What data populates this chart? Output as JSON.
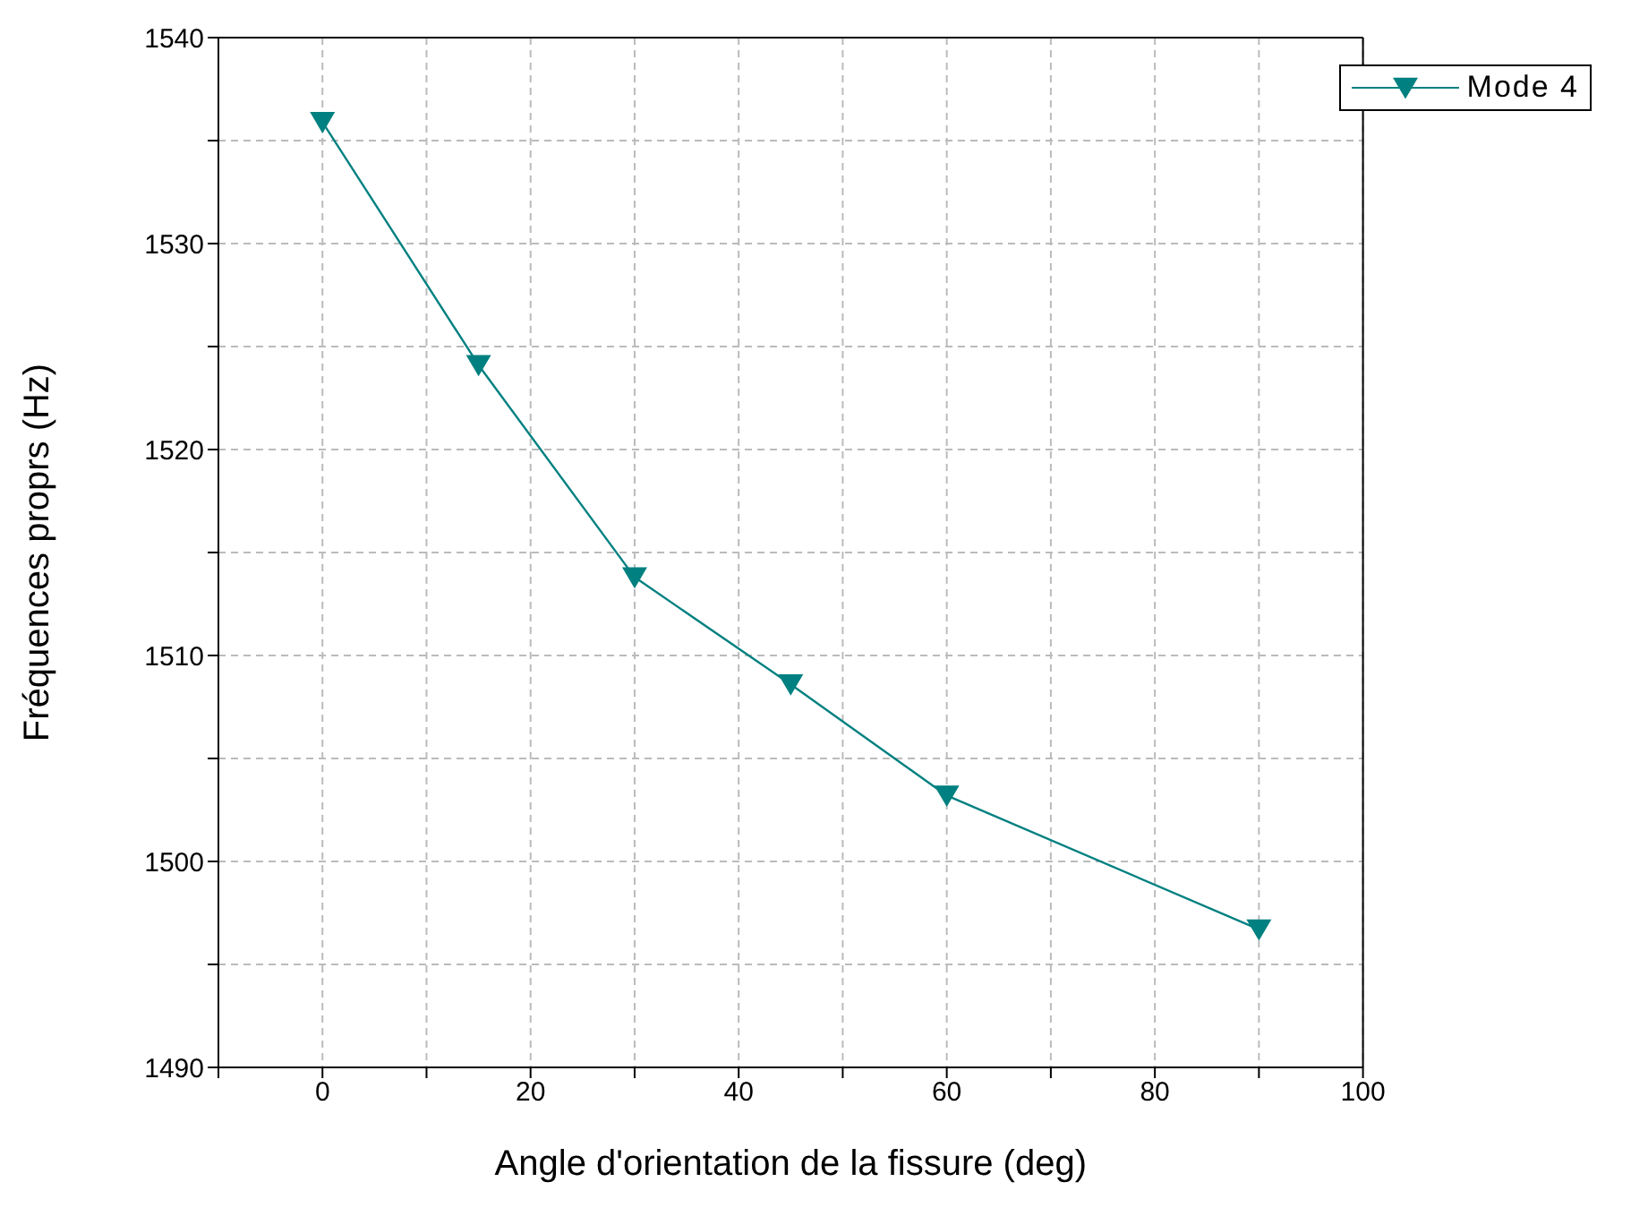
{
  "chart_data": {
    "type": "line",
    "xlabel": "Angle d'orientation de la fissure (deg)",
    "ylabel": "Fréquences proprs (Hz)",
    "x": [
      0,
      15,
      30,
      45,
      60,
      90
    ],
    "series": [
      {
        "name": "Mode 4",
        "color": "#008080",
        "values": [
          1535.9,
          1524.1,
          1513.8,
          1508.6,
          1503.2,
          1496.7
        ]
      }
    ],
    "xlim": [
      -10,
      100
    ],
    "xticks": [
      {
        "value": -10,
        "label": null
      },
      0,
      {
        "value": 10,
        "label": null
      },
      20,
      {
        "value": 30,
        "label": null
      },
      40,
      {
        "value": 50,
        "label": null
      },
      60,
      {
        "value": 70,
        "label": null
      },
      80,
      {
        "value": 90,
        "label": null
      },
      100
    ],
    "ylim": [
      1490,
      1540
    ],
    "yticks": [
      1490,
      {
        "value": 1495,
        "label": null
      },
      1500,
      {
        "value": 1505,
        "label": null
      },
      1510,
      {
        "value": 1515,
        "label": null
      },
      1520,
      {
        "value": 1525,
        "label": null
      },
      1530,
      {
        "value": 1535,
        "label": null
      },
      1540
    ],
    "grid": true,
    "legend": "top right",
    "marker": "triangle",
    "line_style": "solid"
  }
}
